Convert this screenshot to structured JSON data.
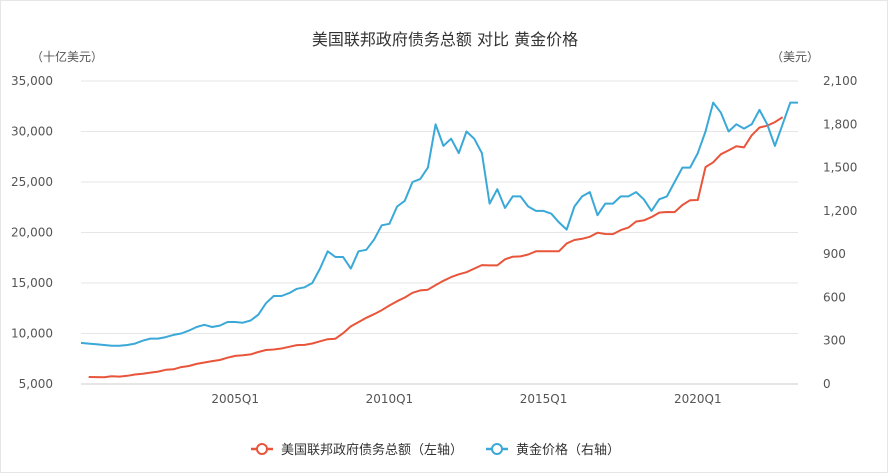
{
  "chart_data": {
    "type": "line",
    "title": "美国联邦政府债务总额 对比 黄金价格",
    "ylabel_left": "（十亿美元）",
    "ylabel_right": "（美元）",
    "left_ticks": [
      "5,000",
      "10,000",
      "15,000",
      "20,000",
      "25,000",
      "30,000",
      "35,000"
    ],
    "left_values": [
      5000,
      10000,
      15000,
      20000,
      25000,
      30000,
      35000
    ],
    "right_ticks": [
      "0",
      "300",
      "600",
      "900",
      "1,200",
      "1,500",
      "1,800",
      "2,100"
    ],
    "right_values": [
      0,
      300,
      600,
      900,
      1200,
      1500,
      1800,
      2100
    ],
    "ylim_left": [
      5000,
      35000
    ],
    "ylim_right": [
      0,
      2100
    ],
    "x_ticks": [
      "2005Q1",
      "2010Q1",
      "2015Q1",
      "2020Q1"
    ],
    "x_tick_values": [
      2005,
      2010,
      2015,
      2020
    ],
    "xlim": [
      2000,
      2023.25
    ],
    "legend_position": "bottom",
    "series": [
      {
        "name": "美国联邦政府债务总额（左轴）",
        "axis": "left",
        "color": "#e8553a",
        "start": 2000.25,
        "step": 0.25,
        "values": [
          5690,
          5680,
          5660,
          5770,
          5730,
          5810,
          5940,
          6010,
          6130,
          6230,
          6410,
          6460,
          6670,
          6780,
          6990,
          7130,
          7270,
          7380,
          7600,
          7780,
          7840,
          7930,
          8170,
          8370,
          8420,
          8510,
          8680,
          8850,
          8870,
          9010,
          9230,
          9440,
          9490,
          10030,
          10700,
          11130,
          11550,
          11910,
          12310,
          12770,
          13200,
          13560,
          14030,
          14270,
          14340,
          14790,
          15220,
          15580,
          15860,
          16070,
          16430,
          16770,
          16740,
          16740,
          17350,
          17600,
          17630,
          17820,
          18140,
          18150,
          18150,
          18150,
          18920,
          19260,
          19380,
          19570,
          19980,
          19850,
          19840,
          20240,
          20490,
          21090,
          21200,
          21520,
          21970,
          22030,
          22020,
          22720,
          23200,
          23220,
          26480,
          26950,
          27750,
          28130,
          28530,
          28430,
          29620,
          30400,
          30570,
          30930,
          31420
        ]
      },
      {
        "name": "黄金价格（右轴）",
        "axis": "right",
        "color": "#3aa9d8",
        "start": 2000,
        "step": 0.25,
        "values": [
          285,
          280,
          275,
          270,
          265,
          265,
          270,
          280,
          300,
          315,
          315,
          325,
          340,
          350,
          370,
          395,
          410,
          395,
          405,
          430,
          430,
          425,
          440,
          480,
          560,
          610,
          610,
          630,
          660,
          670,
          700,
          800,
          920,
          880,
          880,
          800,
          920,
          930,
          1000,
          1100,
          1110,
          1230,
          1270,
          1400,
          1420,
          1500,
          1800,
          1650,
          1700,
          1600,
          1750,
          1700,
          1600,
          1250,
          1350,
          1220,
          1300,
          1300,
          1230,
          1200,
          1200,
          1180,
          1120,
          1070,
          1230,
          1300,
          1330,
          1170,
          1250,
          1250,
          1300,
          1300,
          1330,
          1280,
          1200,
          1280,
          1300,
          1400,
          1500,
          1500,
          1600,
          1750,
          1950,
          1880,
          1750,
          1800,
          1770,
          1800,
          1900,
          1800,
          1650,
          1800,
          1950,
          1950
        ]
      }
    ]
  }
}
